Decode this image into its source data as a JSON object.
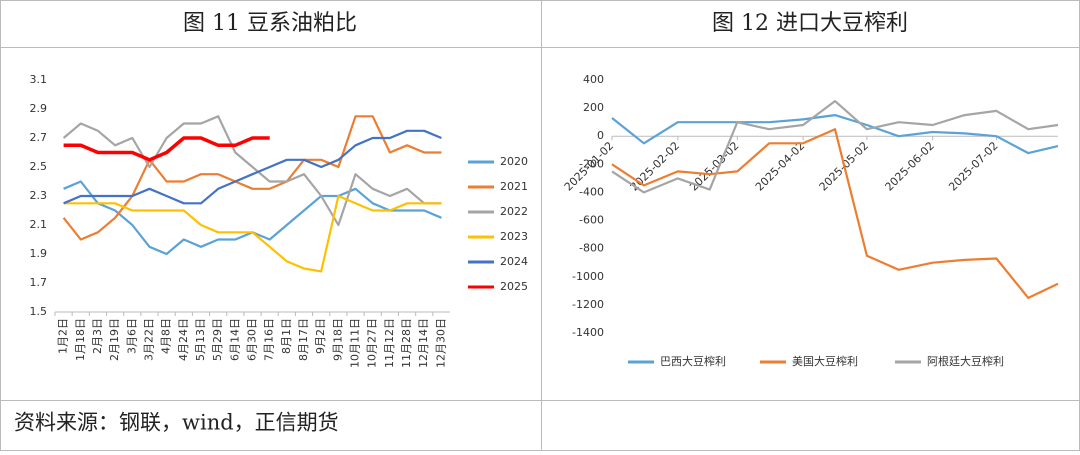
{
  "chart_data": [
    {
      "type": "line",
      "title": "图 11 豆系油粕比",
      "categories": [
        "1月2日",
        "1月18日",
        "2月3日",
        "2月19日",
        "3月6日",
        "3月22日",
        "4月8日",
        "4月24日",
        "5月13日",
        "5月29日",
        "6月14日",
        "6月30日",
        "7月16日",
        "8月1日",
        "8月17日",
        "9月2日",
        "9月18日",
        "10月11日",
        "10月27日",
        "11月12日",
        "11月28日",
        "12月14日",
        "12月30日"
      ],
      "series": [
        {
          "name": "2020",
          "color": "#5ba3d6",
          "values": [
            2.35,
            2.4,
            2.25,
            2.2,
            2.1,
            1.95,
            1.9,
            2.0,
            1.95,
            2.0,
            2.0,
            2.05,
            2.0,
            2.1,
            2.2,
            2.3,
            2.3,
            2.35,
            2.25,
            2.2,
            2.2,
            2.2,
            2.15
          ]
        },
        {
          "name": "2021",
          "color": "#ed7d31",
          "values": [
            2.15,
            2.0,
            2.05,
            2.15,
            2.3,
            2.55,
            2.4,
            2.4,
            2.45,
            2.45,
            2.4,
            2.35,
            2.35,
            2.4,
            2.55,
            2.55,
            2.5,
            2.85,
            2.85,
            2.6,
            2.65,
            2.6,
            2.6
          ]
        },
        {
          "name": "2022",
          "color": "#a5a5a5",
          "values": [
            2.7,
            2.8,
            2.75,
            2.65,
            2.7,
            2.5,
            2.7,
            2.8,
            2.8,
            2.85,
            2.6,
            2.5,
            2.4,
            2.4,
            2.45,
            2.3,
            2.1,
            2.45,
            2.35,
            2.3,
            2.35,
            2.25,
            2.25
          ]
        },
        {
          "name": "2023",
          "color": "#ffc000",
          "values": [
            2.25,
            2.25,
            2.25,
            2.25,
            2.2,
            2.2,
            2.2,
            2.2,
            2.1,
            2.05,
            2.05,
            2.05,
            1.95,
            1.85,
            1.8,
            1.78,
            2.3,
            2.25,
            2.2,
            2.2,
            2.25,
            2.25,
            2.25
          ]
        },
        {
          "name": "2024",
          "color": "#4472c4",
          "values": [
            2.25,
            2.3,
            2.3,
            2.3,
            2.3,
            2.35,
            2.3,
            2.25,
            2.25,
            2.35,
            2.4,
            2.45,
            2.5,
            2.55,
            2.55,
            2.5,
            2.55,
            2.65,
            2.7,
            2.7,
            2.75,
            2.75,
            2.7
          ]
        },
        {
          "name": "2025",
          "color": "#ff0000",
          "values": [
            2.65,
            2.65,
            2.6,
            2.6,
            2.6,
            2.55,
            2.6,
            2.7,
            2.7,
            2.65,
            2.65,
            2.7,
            2.7,
            null,
            null,
            null,
            null,
            null,
            null,
            null,
            null,
            null,
            null
          ]
        }
      ],
      "ylim": [
        1.5,
        3.1
      ],
      "yticks": [
        1.5,
        1.7,
        1.9,
        2.1,
        2.3,
        2.5,
        2.7,
        2.9,
        3.1
      ],
      "grid": false,
      "legend": "right"
    },
    {
      "type": "line",
      "title": "图 12 进口大豆榨利",
      "x": [
        "2025-01-02",
        "2025-01-17",
        "2025-02-02",
        "2025-02-17",
        "2025-03-02",
        "2025-03-17",
        "2025-04-02",
        "2025-04-17",
        "2025-05-02",
        "2025-05-17",
        "2025-06-02",
        "2025-06-17",
        "2025-07-02",
        "2025-07-17",
        "2025-07-31"
      ],
      "series": [
        {
          "name": "巴西大豆榨利",
          "color": "#5ba3d6",
          "values": [
            130,
            -50,
            100,
            100,
            100,
            100,
            120,
            150,
            80,
            0,
            30,
            20,
            0,
            -120,
            -70
          ]
        },
        {
          "name": "美国大豆榨利",
          "color": "#ed7d31",
          "values": [
            -200,
            -350,
            -250,
            -270,
            -250,
            -50,
            -50,
            50,
            -850,
            -950,
            -900,
            -880,
            -870,
            -1150,
            -1050
          ]
        },
        {
          "name": "阿根廷大豆榨利",
          "color": "#a5a5a5",
          "values": [
            -250,
            -400,
            -300,
            -380,
            100,
            50,
            80,
            250,
            50,
            100,
            80,
            150,
            180,
            50,
            80
          ]
        }
      ],
      "xlim": [
        "2025-01-02",
        "2025-07-31"
      ],
      "xticks": [
        "2025-01-02",
        "2025-02-02",
        "2025-03-02",
        "2025-04-02",
        "2025-05-02",
        "2025-06-02",
        "2025-07-02"
      ],
      "ylim": [
        -1400,
        400
      ],
      "yticks": [
        -1400,
        -1200,
        -1000,
        -800,
        -600,
        -400,
        -200,
        0,
        200,
        400
      ],
      "grid": false,
      "legend": "bottom"
    }
  ],
  "footer": "资料来源：钢联，wind，正信期货"
}
